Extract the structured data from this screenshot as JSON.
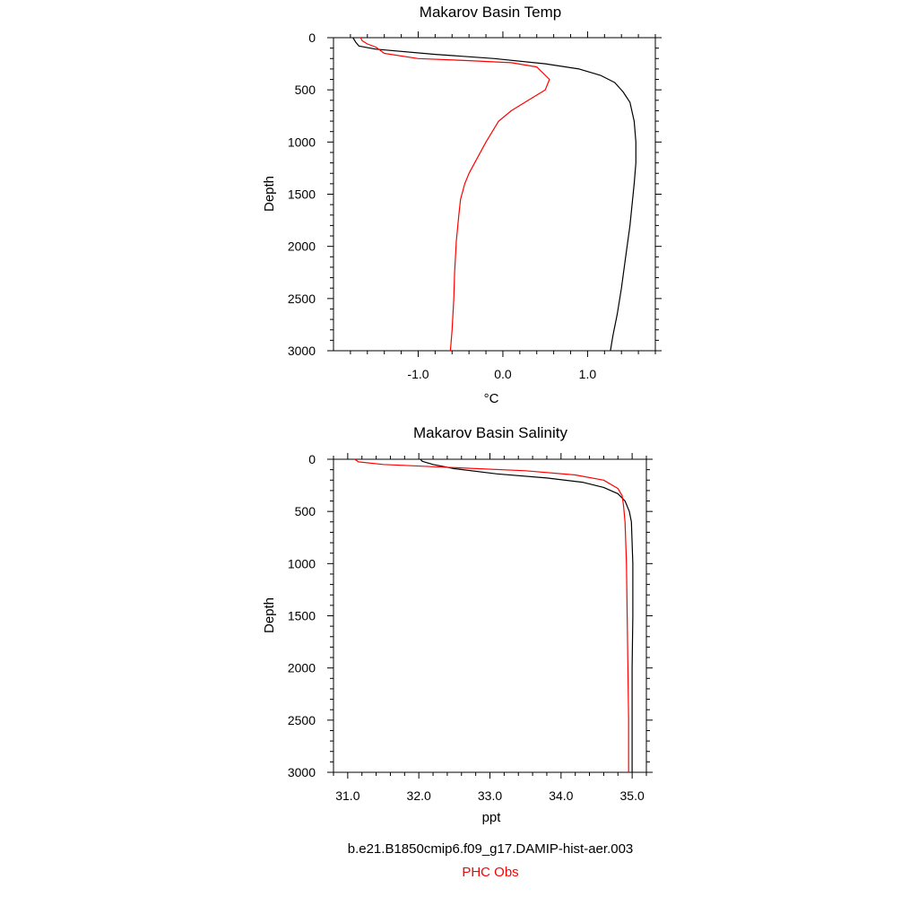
{
  "chart_data": [
    {
      "type": "line",
      "title": "Makarov Basin Temp",
      "xlabel": "°C",
      "ylabel": "Depth",
      "xlim": [
        -2.0,
        1.8
      ],
      "ylim": [
        0,
        3000
      ],
      "y_inverted": true,
      "xticks": [
        -1.0,
        0.0,
        1.0
      ],
      "xtick_labels": [
        "-1.0",
        "0.0",
        "1.0"
      ],
      "yticks": [
        0,
        500,
        1000,
        1500,
        2000,
        2500,
        3000
      ],
      "ytick_labels": [
        "0",
        "500",
        "1000",
        "1500",
        "2000",
        "2500",
        "3000"
      ],
      "grid": false,
      "series": [
        {
          "name": "b.e21.B1850cmip6.f09_g17.DAMIP-hist-aer.003",
          "color": "#000000",
          "x": [
            -1.77,
            -1.74,
            -1.7,
            -1.5,
            -0.8,
            -0.1,
            0.5,
            0.9,
            1.15,
            1.32,
            1.42,
            1.5,
            1.55,
            1.57,
            1.57,
            1.55,
            1.5,
            1.45,
            1.4,
            1.35,
            1.3,
            1.27
          ],
          "y": [
            0,
            40,
            80,
            110,
            160,
            200,
            250,
            300,
            360,
            430,
            520,
            620,
            800,
            1000,
            1200,
            1400,
            1800,
            2100,
            2400,
            2650,
            2850,
            3000
          ]
        },
        {
          "name": "PHC Obs",
          "color": "#ff0000",
          "x": [
            -1.68,
            -1.66,
            -1.6,
            -1.5,
            -1.4,
            -1.0,
            -0.4,
            0.1,
            0.4,
            0.55,
            0.5,
            0.3,
            0.1,
            -0.05,
            -0.2,
            -0.3,
            -0.4,
            -0.45,
            -0.5,
            -0.52,
            -0.55,
            -0.57,
            -0.58,
            -0.6,
            -0.62
          ],
          "y": [
            0,
            30,
            60,
            90,
            150,
            200,
            220,
            240,
            280,
            400,
            500,
            600,
            700,
            800,
            1000,
            1150,
            1300,
            1400,
            1550,
            1700,
            1950,
            2250,
            2500,
            2800,
            3000
          ]
        }
      ]
    },
    {
      "type": "line",
      "title": "Makarov Basin Salinity",
      "xlabel": "ppt",
      "ylabel": "Depth",
      "xlim": [
        30.8,
        35.2
      ],
      "ylim": [
        0,
        3000
      ],
      "y_inverted": true,
      "xticks": [
        31.0,
        32.0,
        33.0,
        34.0,
        35.0
      ],
      "xtick_labels": [
        "31.0",
        "32.0",
        "33.0",
        "34.0",
        "35.0"
      ],
      "yticks": [
        0,
        500,
        1000,
        1500,
        2000,
        2500,
        3000
      ],
      "ytick_labels": [
        "0",
        "500",
        "1000",
        "1500",
        "2000",
        "2500",
        "3000"
      ],
      "grid": false,
      "series": [
        {
          "name": "b.e21.B1850cmip6.f09_g17.DAMIP-hist-aer.003",
          "color": "#000000",
          "x": [
            32.02,
            32.05,
            32.2,
            32.5,
            33.1,
            33.8,
            34.3,
            34.6,
            34.8,
            34.9,
            34.96,
            34.99,
            35.0,
            35.01,
            35.01,
            35.0,
            35.0,
            35.0
          ],
          "y": [
            0,
            20,
            50,
            90,
            140,
            180,
            220,
            270,
            330,
            400,
            500,
            600,
            800,
            1000,
            1500,
            2000,
            2500,
            3000
          ]
        },
        {
          "name": "PHC Obs",
          "color": "#ff0000",
          "x": [
            31.1,
            31.15,
            31.5,
            32.5,
            33.5,
            34.2,
            34.6,
            34.8,
            34.86,
            34.88,
            34.9,
            34.91,
            34.92,
            34.93,
            34.94,
            34.95,
            34.95
          ],
          "y": [
            0,
            25,
            50,
            80,
            110,
            150,
            200,
            280,
            350,
            450,
            600,
            800,
            1000,
            1500,
            2000,
            2500,
            3000
          ]
        }
      ]
    }
  ],
  "legend": {
    "model_label": "b.e21.B1850cmip6.f09_g17.DAMIP-hist-aer.003",
    "model_color": "#000000",
    "obs_label": "PHC Obs",
    "obs_color": "#ff0000"
  }
}
